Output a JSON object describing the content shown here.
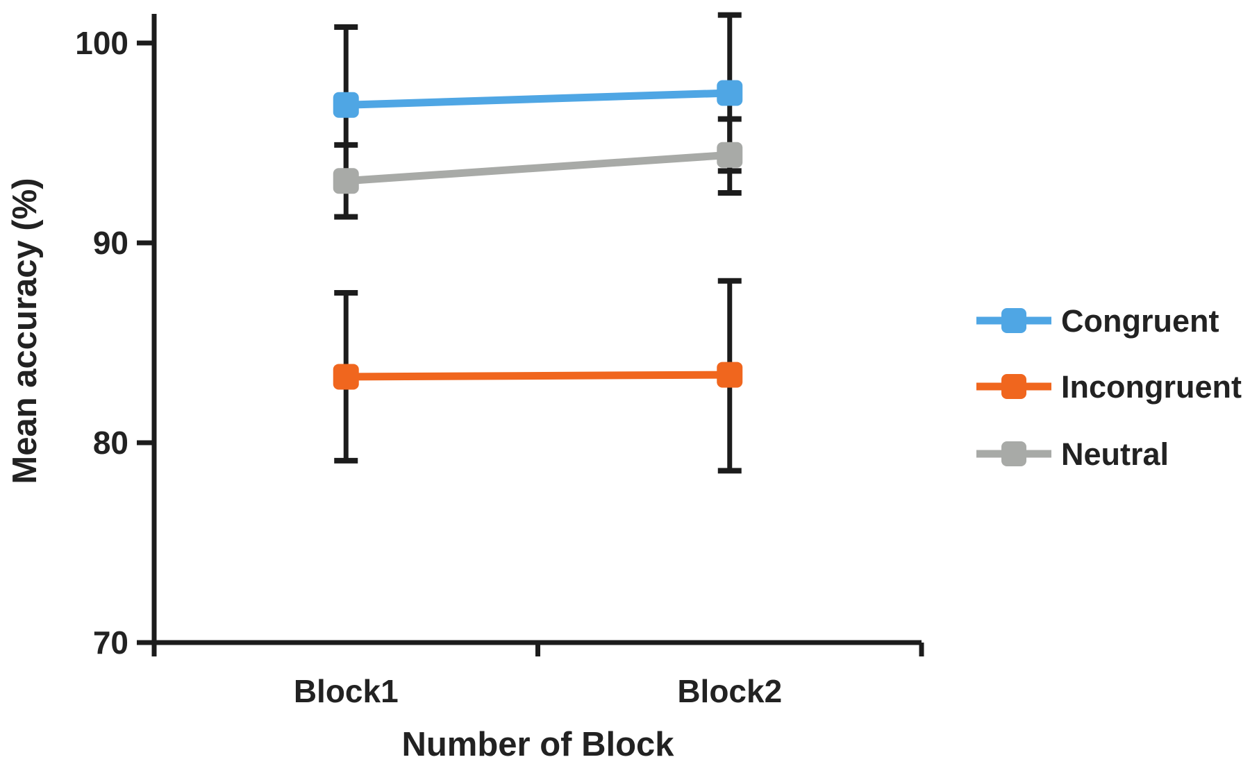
{
  "figure": {
    "background": "#ffffff"
  },
  "chart_data": {
    "type": "line",
    "title": "",
    "xlabel": "Number of Block",
    "ylabel": "Mean accuracy (%)",
    "categories": [
      "Block1",
      "Block2"
    ],
    "y_axis": {
      "tick_labels": [
        "100",
        "90",
        "80",
        "70"
      ],
      "tick_values": [
        100,
        90,
        80,
        70
      ],
      "ylim": [
        70,
        101.5
      ],
      "grid": false
    },
    "x_axis": {
      "ticks_between_categories": true
    },
    "series": [
      {
        "name": "Congruent",
        "color": "#4FA6E4",
        "marker": "square",
        "values": [
          96.9,
          97.5
        ],
        "error_upper": [
          100.8,
          101.4
        ],
        "error_lower": [
          93.0,
          93.6
        ]
      },
      {
        "name": "Incongruent",
        "color": "#F0661E",
        "marker": "square",
        "values": [
          83.3,
          83.4
        ],
        "error_upper": [
          87.5,
          88.1
        ],
        "error_lower": [
          79.1,
          78.6
        ]
      },
      {
        "name": "Neutral",
        "color": "#A8AAA7",
        "marker": "square",
        "values": [
          93.1,
          94.4
        ],
        "error_upper": [
          94.9,
          96.2
        ],
        "error_lower": [
          91.3,
          92.5
        ]
      }
    ],
    "error_bar_color": "#1c1c1c",
    "axis_color": "#1c1c1c",
    "text_color": "#222222",
    "legend": {
      "position": "right"
    }
  }
}
